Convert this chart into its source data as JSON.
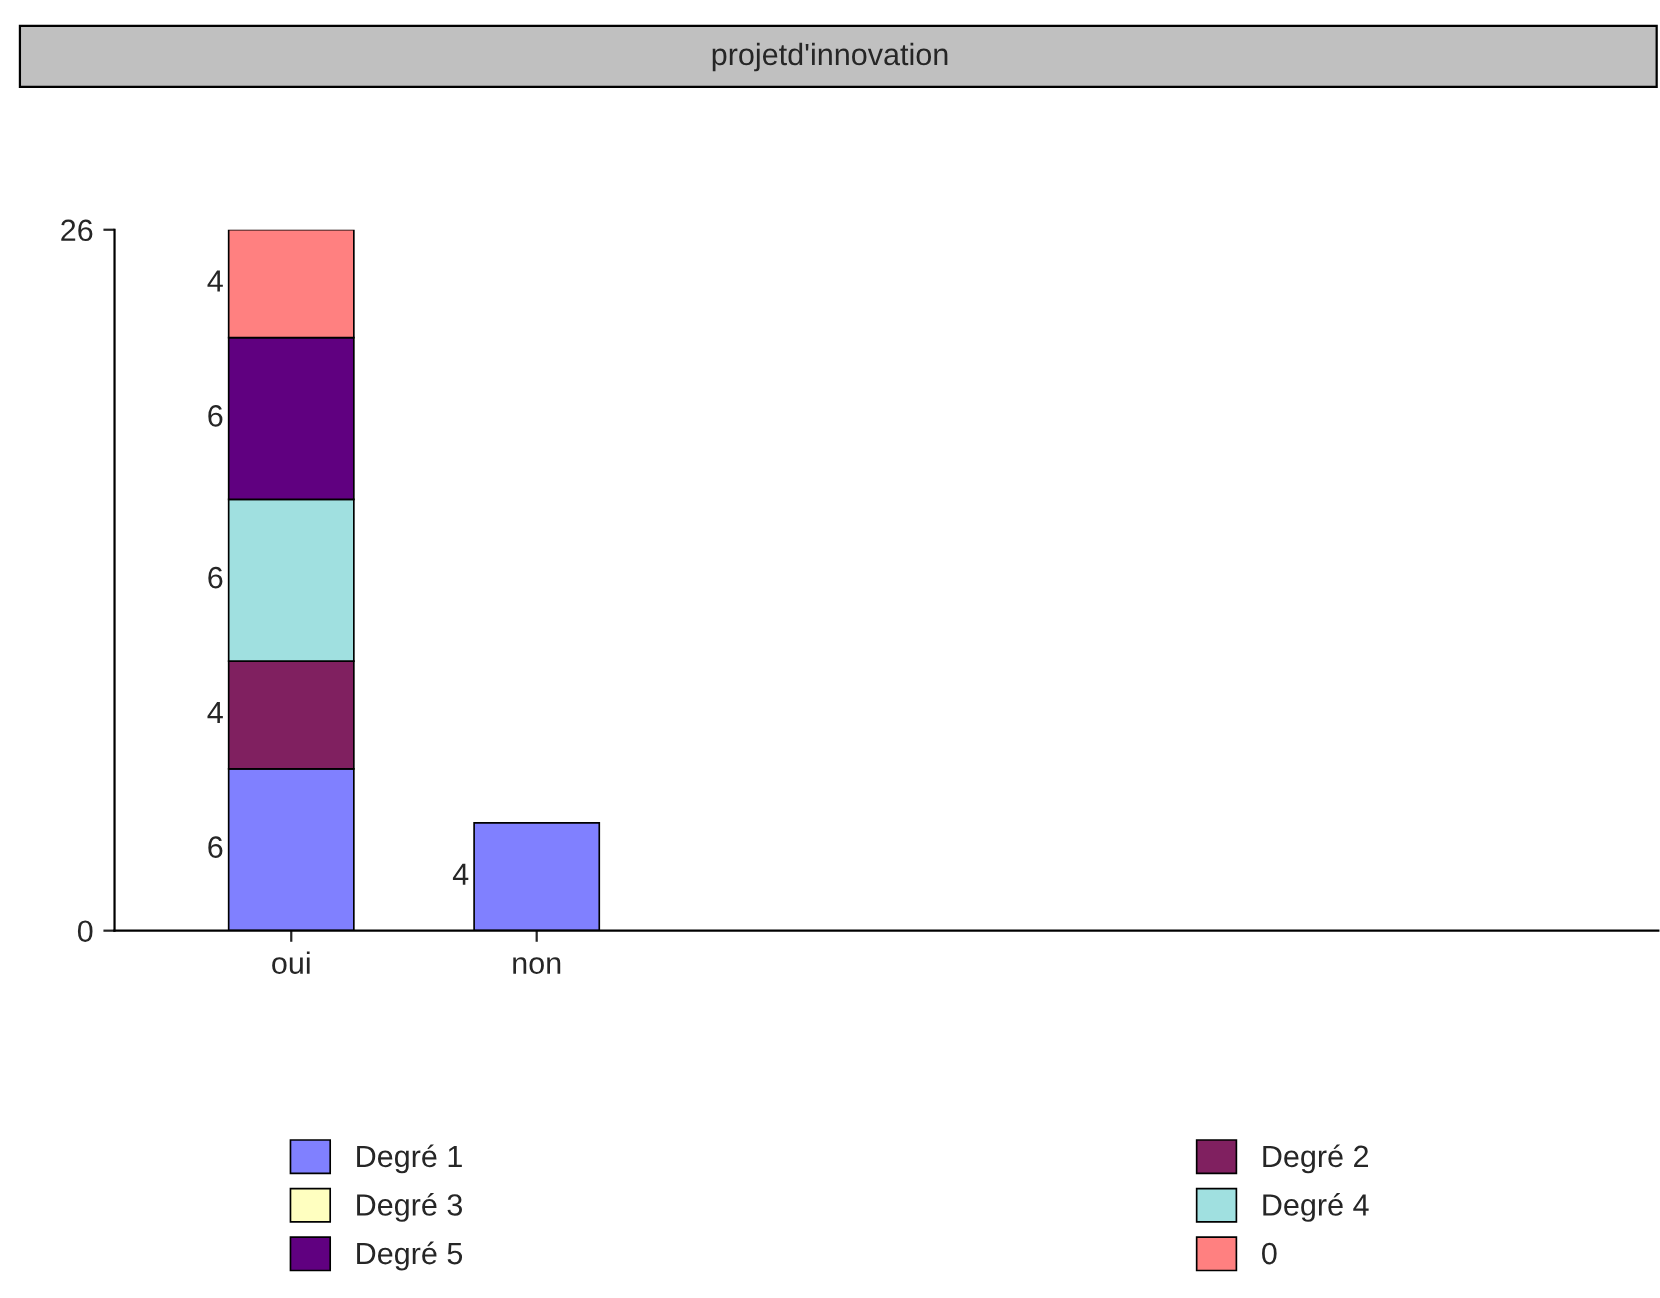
{
  "chart_data": {
    "type": "bar",
    "title": "projetd'innovation",
    "stacked": true,
    "categories": [
      "oui",
      "non"
    ],
    "series": [
      {
        "name": "Degré 1",
        "color": "#8080ff",
        "values": [
          6,
          4
        ],
        "value_labels": [
          "6",
          "4"
        ]
      },
      {
        "name": "Degré 2",
        "color": "#802060",
        "values": [
          4,
          0
        ],
        "value_labels": [
          "4",
          null
        ]
      },
      {
        "name": "Degré 3",
        "color": "#ffffc0",
        "values": [
          0,
          0
        ],
        "value_labels": [
          null,
          null
        ]
      },
      {
        "name": "Degré 4",
        "color": "#a0e0e0",
        "values": [
          6,
          0
        ],
        "value_labels": [
          "6",
          null
        ]
      },
      {
        "name": "Degré 5",
        "color": "#600080",
        "values": [
          6,
          0
        ],
        "value_labels": [
          "6",
          null
        ]
      },
      {
        "name": "0",
        "color": "#ff8080",
        "values": [
          4,
          0
        ],
        "value_labels": [
          "4",
          null
        ]
      }
    ],
    "ylim": [
      0,
      26
    ],
    "yticks": [
      0,
      26
    ],
    "grid": false,
    "legend": "bottom"
  }
}
